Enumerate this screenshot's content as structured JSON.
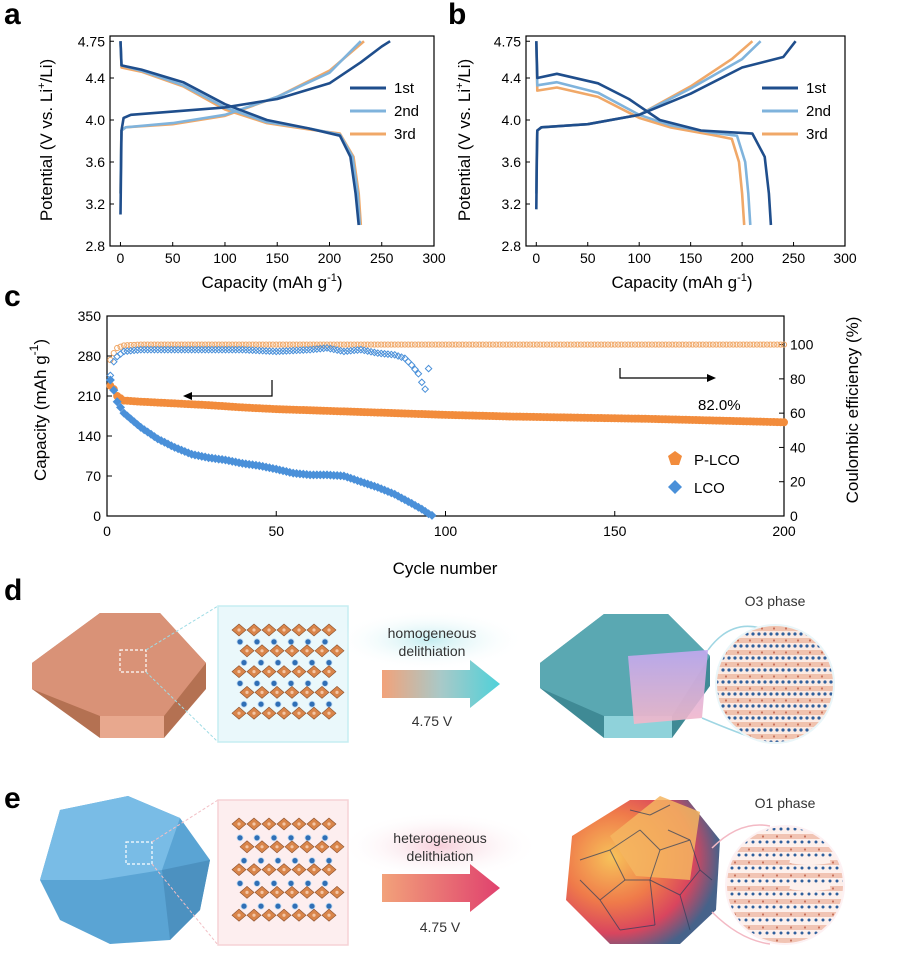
{
  "panels": {
    "a": "a",
    "b": "b",
    "c": "c",
    "d": "d",
    "e": "e"
  },
  "colors": {
    "cycle1": "#1f4e8c",
    "cycle2": "#7fb3dc",
    "cycle3": "#f0a868",
    "plco": "#f28c3c",
    "lco": "#4a90d9",
    "orange_slab": "#d98c68",
    "teal": "#5fb8c2",
    "blue_particle": "#6bb3dd"
  },
  "chart_data": [
    {
      "id": "a",
      "type": "line",
      "xlabel_main": "Capacity (mAh g",
      "xlabel_sup": "-1",
      "xlabel_end": ")",
      "ylabel": "Potential (V vs. Li",
      "ylabel_sup": "+",
      "ylabel_end": "/Li)",
      "xlim": [
        -10,
        300
      ],
      "ylim": [
        2.8,
        4.8
      ],
      "xticks": [
        0,
        50,
        100,
        150,
        200,
        250,
        300
      ],
      "yticks": [
        2.8,
        3.2,
        3.6,
        4.0,
        4.4,
        4.75
      ],
      "legend_position": "right",
      "series": [
        {
          "name": "1st",
          "charge": [
            [
              0,
              3.1
            ],
            [
              0.5,
              3.5
            ],
            [
              1,
              3.9
            ],
            [
              3,
              4.02
            ],
            [
              10,
              4.05
            ],
            [
              50,
              4.08
            ],
            [
              100,
              4.12
            ],
            [
              150,
              4.2
            ],
            [
              200,
              4.35
            ],
            [
              230,
              4.55
            ],
            [
              250,
              4.7
            ],
            [
              258,
              4.75
            ]
          ],
          "discharge": [
            [
              0,
              4.75
            ],
            [
              1,
              4.52
            ],
            [
              20,
              4.48
            ],
            [
              60,
              4.36
            ],
            [
              100,
              4.15
            ],
            [
              140,
              4.0
            ],
            [
              180,
              3.92
            ],
            [
              210,
              3.85
            ],
            [
              220,
              3.65
            ],
            [
              225,
              3.3
            ],
            [
              228,
              3.0
            ]
          ]
        },
        {
          "name": "2nd",
          "charge": [
            [
              0,
              3.3
            ],
            [
              0.5,
              3.7
            ],
            [
              1,
              3.9
            ],
            [
              5,
              3.93
            ],
            [
              50,
              3.97
            ],
            [
              100,
              4.05
            ],
            [
              150,
              4.22
            ],
            [
              200,
              4.45
            ],
            [
              230,
              4.75
            ]
          ],
          "discharge": [
            [
              0,
              4.75
            ],
            [
              1,
              4.52
            ],
            [
              20,
              4.47
            ],
            [
              60,
              4.33
            ],
            [
              100,
              4.12
            ],
            [
              140,
              3.98
            ],
            [
              180,
              3.92
            ],
            [
              210,
              3.86
            ],
            [
              222,
              3.65
            ],
            [
              227,
              3.3
            ],
            [
              229,
              3.0
            ]
          ]
        },
        {
          "name": "3rd",
          "charge": [
            [
              0,
              3.3
            ],
            [
              0.5,
              3.7
            ],
            [
              1,
              3.9
            ],
            [
              5,
              3.93
            ],
            [
              50,
              3.96
            ],
            [
              100,
              4.04
            ],
            [
              150,
              4.22
            ],
            [
              200,
              4.47
            ],
            [
              233,
              4.75
            ]
          ],
          "discharge": [
            [
              0,
              4.75
            ],
            [
              1,
              4.5
            ],
            [
              20,
              4.46
            ],
            [
              60,
              4.32
            ],
            [
              100,
              4.1
            ],
            [
              140,
              3.97
            ],
            [
              180,
              3.91
            ],
            [
              210,
              3.87
            ],
            [
              223,
              3.65
            ],
            [
              228,
              3.3
            ],
            [
              230,
              3.0
            ]
          ]
        }
      ]
    },
    {
      "id": "b",
      "type": "line",
      "xlabel_main": "Capacity (mAh g",
      "xlabel_sup": "-1",
      "xlabel_end": ")",
      "ylabel": "Potential (V vs. Li",
      "ylabel_sup": "+",
      "ylabel_end": "/Li)",
      "xlim": [
        -10,
        300
      ],
      "ylim": [
        2.8,
        4.8
      ],
      "xticks": [
        0,
        50,
        100,
        150,
        200,
        250,
        300
      ],
      "yticks": [
        2.8,
        3.2,
        3.6,
        4.0,
        4.4,
        4.75
      ],
      "legend_position": "right",
      "series": [
        {
          "name": "1st",
          "charge": [
            [
              0,
              3.15
            ],
            [
              0.5,
              3.6
            ],
            [
              1,
              3.9
            ],
            [
              5,
              3.93
            ],
            [
              50,
              3.96
            ],
            [
              100,
              4.05
            ],
            [
              150,
              4.25
            ],
            [
              200,
              4.5
            ],
            [
              240,
              4.6
            ],
            [
              252,
              4.75
            ]
          ],
          "discharge": [
            [
              0,
              4.75
            ],
            [
              1,
              4.4
            ],
            [
              20,
              4.44
            ],
            [
              60,
              4.35
            ],
            [
              90,
              4.2
            ],
            [
              120,
              4.0
            ],
            [
              160,
              3.9
            ],
            [
              210,
              3.87
            ],
            [
              222,
              3.65
            ],
            [
              226,
              3.3
            ],
            [
              228,
              3.0
            ]
          ]
        },
        {
          "name": "2nd",
          "charge": [
            [
              0,
              3.3
            ],
            [
              0.5,
              3.7
            ],
            [
              1,
              3.9
            ],
            [
              5,
              3.93
            ],
            [
              50,
              3.96
            ],
            [
              100,
              4.05
            ],
            [
              150,
              4.3
            ],
            [
              200,
              4.58
            ],
            [
              218,
              4.75
            ]
          ],
          "discharge": [
            [
              0,
              4.75
            ],
            [
              1,
              4.33
            ],
            [
              20,
              4.36
            ],
            [
              60,
              4.26
            ],
            [
              100,
              4.05
            ],
            [
              130,
              3.95
            ],
            [
              170,
              3.88
            ],
            [
              195,
              3.85
            ],
            [
              203,
              3.6
            ],
            [
              206,
              3.3
            ],
            [
              208,
              3.0
            ]
          ]
        },
        {
          "name": "3rd",
          "charge": [
            [
              0,
              3.3
            ],
            [
              0.5,
              3.7
            ],
            [
              1,
              3.9
            ],
            [
              5,
              3.93
            ],
            [
              50,
              3.96
            ],
            [
              100,
              4.05
            ],
            [
              150,
              4.32
            ],
            [
              190,
              4.58
            ],
            [
              210,
              4.75
            ]
          ],
          "discharge": [
            [
              0,
              4.75
            ],
            [
              1,
              4.28
            ],
            [
              20,
              4.31
            ],
            [
              60,
              4.22
            ],
            [
              100,
              4.02
            ],
            [
              130,
              3.93
            ],
            [
              170,
              3.86
            ],
            [
              190,
              3.82
            ],
            [
              197,
              3.6
            ],
            [
              200,
              3.3
            ],
            [
              202,
              3.0
            ]
          ]
        }
      ]
    },
    {
      "id": "c",
      "type": "scatter",
      "xlabel": "Cycle number",
      "ylabel_main": "Capacity (mAh g",
      "ylabel_sup": "-1",
      "ylabel_end": ")",
      "y2label": "Coulombic efficiency (%)",
      "xlim": [
        0,
        200
      ],
      "ylim": [
        0,
        350
      ],
      "y2lim": [
        0,
        116.67
      ],
      "xticks": [
        0,
        50,
        100,
        150,
        200
      ],
      "yticks": [
        0,
        70,
        140,
        210,
        280,
        350
      ],
      "y2ticks": [
        0,
        20,
        40,
        60,
        80,
        100
      ],
      "annotation": "82.0%",
      "legend_position": "bottom-right",
      "series": [
        {
          "name": "P-LCO",
          "capacity": [
            [
              1,
              228
            ],
            [
              2,
              222
            ],
            [
              3,
              210
            ],
            [
              5,
              202
            ],
            [
              10,
              200
            ],
            [
              20,
              197
            ],
            [
              30,
              194
            ],
            [
              40,
              190
            ],
            [
              50,
              187
            ],
            [
              60,
              185
            ],
            [
              70,
              183
            ],
            [
              80,
              181
            ],
            [
              90,
              179
            ],
            [
              100,
              177
            ],
            [
              120,
              174
            ],
            [
              140,
              172
            ],
            [
              160,
              170
            ],
            [
              180,
              167
            ],
            [
              200,
              164
            ]
          ],
          "efficiency": [
            [
              1,
              91
            ],
            [
              2,
              95
            ],
            [
              3,
              98
            ],
            [
              5,
              99.5
            ],
            [
              10,
              100
            ],
            [
              50,
              100
            ],
            [
              100,
              100
            ],
            [
              150,
              100
            ],
            [
              200,
              100
            ]
          ]
        },
        {
          "name": "LCO",
          "capacity": [
            [
              1,
              238
            ],
            [
              2,
              220
            ],
            [
              3,
              200
            ],
            [
              5,
              180
            ],
            [
              10,
              155
            ],
            [
              15,
              135
            ],
            [
              20,
              120
            ],
            [
              25,
              108
            ],
            [
              30,
              102
            ],
            [
              35,
              98
            ],
            [
              40,
              92
            ],
            [
              45,
              88
            ],
            [
              50,
              82
            ],
            [
              55,
              75
            ],
            [
              60,
              72
            ],
            [
              65,
              72
            ],
            [
              70,
              70
            ],
            [
              75,
              60
            ],
            [
              80,
              50
            ],
            [
              85,
              38
            ],
            [
              90,
              22
            ],
            [
              93,
              12
            ],
            [
              95,
              4
            ],
            [
              96,
              1
            ]
          ],
          "efficiency": [
            [
              1,
              82
            ],
            [
              2,
              90
            ],
            [
              3,
              93
            ],
            [
              5,
              96
            ],
            [
              10,
              97
            ],
            [
              20,
              97
            ],
            [
              30,
              97
            ],
            [
              40,
              97
            ],
            [
              50,
              96
            ],
            [
              60,
              97
            ],
            [
              65,
              98
            ],
            [
              70,
              96
            ],
            [
              75,
              97
            ],
            [
              80,
              95
            ],
            [
              85,
              94
            ],
            [
              88,
              92
            ],
            [
              90,
              88
            ],
            [
              92,
              83
            ],
            [
              93,
              78
            ],
            [
              94,
              74
            ],
            [
              95,
              86
            ]
          ]
        }
      ]
    }
  ],
  "diagram_d": {
    "arrow_top": "homogeneous",
    "arrow_bottom": "delithiation",
    "voltage": "4.75 V",
    "phase": "O3 phase"
  },
  "diagram_e": {
    "arrow_top": "heterogeneous",
    "arrow_bottom": "delithiation",
    "voltage": "4.75 V",
    "phase": "O1 phase"
  }
}
